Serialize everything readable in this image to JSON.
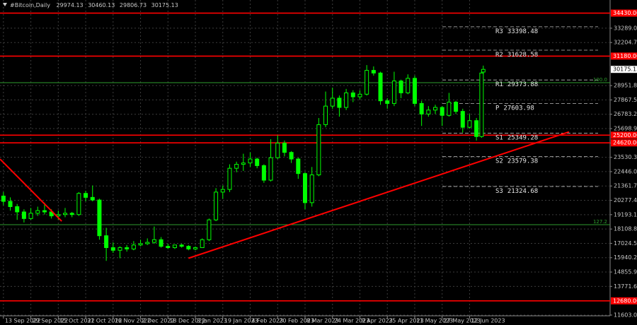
{
  "chart_data": {
    "type": "candlestick",
    "title": "#Bitcoin,Daily",
    "color": "#00ff00",
    "grid": true,
    "x": [
      0,
      4,
      8,
      12,
      16,
      20,
      24,
      28,
      32,
      36,
      40,
      44,
      48,
      52,
      56,
      60,
      64,
      68,
      72,
      76,
      80,
      84,
      88,
      92,
      96,
      100,
      104,
      108,
      112,
      116,
      120,
      124,
      128,
      132,
      136,
      140,
      144,
      148,
      152,
      156,
      160,
      164,
      168,
      172,
      176,
      180,
      184,
      188,
      192,
      196,
      200,
      204,
      208,
      212,
      216,
      220,
      224,
      228,
      232,
      236,
      240,
      244,
      248,
      252,
      256,
      260,
      264,
      268,
      272,
      276,
      279,
      280
    ],
    "open": [
      20600,
      20200,
      19800,
      19400,
      18900,
      19300,
      19500,
      19400,
      19100,
      19200,
      19300,
      19200,
      20800,
      20500,
      20300,
      17600,
      16700,
      16500,
      16700,
      16600,
      16900,
      17000,
      17100,
      17300,
      16800,
      16700,
      16900,
      16800,
      16600,
      16700,
      17300,
      18800,
      20900,
      21100,
      22700,
      23000,
      23100,
      23400,
      22900,
      21800,
      23500,
      24600,
      23900,
      23400,
      22300,
      20100,
      22200,
      26000,
      27400,
      28000,
      27300,
      28400,
      28100,
      28300,
      30100,
      29900,
      27800,
      27600,
      29300,
      28400,
      29500,
      27600,
      26800,
      27100,
      27300,
      26700,
      27700,
      27000,
      25800,
      26300,
      25100,
      29974.13
    ],
    "high": [
      20900,
      20500,
      20000,
      19600,
      19700,
      19800,
      20100,
      19600,
      19500,
      19700,
      19400,
      20900,
      21000,
      21400,
      20400,
      18200,
      17100,
      16800,
      16900,
      17200,
      17300,
      17400,
      18300,
      17500,
      17000,
      16900,
      17000,
      16900,
      16800,
      17400,
      18900,
      21200,
      21400,
      23000,
      23200,
      23800,
      23900,
      23500,
      23000,
      24900,
      25200,
      24800,
      24000,
      23500,
      22400,
      22800,
      26500,
      28500,
      28800,
      28200,
      28700,
      28600,
      28600,
      30500,
      30400,
      30000,
      28000,
      30000,
      29400,
      29800,
      29700,
      27800,
      27400,
      27500,
      27400,
      28400,
      27800,
      27200,
      26800,
      26500,
      30100,
      30460.13
    ],
    "low": [
      19900,
      19500,
      18800,
      18600,
      18800,
      19100,
      19200,
      18900,
      18800,
      19000,
      19000,
      19100,
      20200,
      20200,
      17300,
      15700,
      16300,
      15900,
      16400,
      16500,
      16800,
      16900,
      17000,
      16700,
      16600,
      16600,
      16700,
      16500,
      16500,
      16700,
      17200,
      18700,
      20400,
      20900,
      22400,
      22500,
      22800,
      22700,
      21600,
      21700,
      23400,
      23600,
      23100,
      21900,
      19600,
      19800,
      22100,
      25800,
      27200,
      26600,
      27100,
      27700,
      27900,
      28200,
      29700,
      27500,
      27200,
      27400,
      28000,
      28300,
      27400,
      25900,
      26600,
      26800,
      25900,
      26600,
      26800,
      25400,
      25700,
      24800,
      25000,
      29806.73
    ],
    "close": [
      20200,
      19800,
      19400,
      18900,
      19300,
      19500,
      19400,
      19100,
      19200,
      19300,
      19200,
      20800,
      20500,
      20300,
      17600,
      16700,
      16500,
      16700,
      16600,
      16900,
      17000,
      17100,
      17300,
      16800,
      16700,
      16900,
      16800,
      16600,
      16700,
      17300,
      18800,
      20900,
      21100,
      22700,
      23000,
      23100,
      23400,
      22900,
      21800,
      23500,
      24600,
      23900,
      23400,
      22300,
      20100,
      22200,
      26000,
      27400,
      28000,
      27300,
      28400,
      28100,
      28300,
      30100,
      29900,
      27800,
      27600,
      29300,
      28400,
      29500,
      27600,
      26800,
      27100,
      27300,
      26700,
      27700,
      27000,
      25800,
      26300,
      25100,
      29900,
      30175.13
    ],
    "xlim": [
      -2,
      354
    ],
    "ylim": [
      11120,
      35420
    ],
    "xticks": [
      {
        "value": 0,
        "label": "13 Sep 2022"
      },
      {
        "value": 16,
        "label": "29 Sep 2022"
      },
      {
        "value": 32,
        "label": "15 Oct 2022"
      },
      {
        "value": 48,
        "label": "31 Oct 2022"
      },
      {
        "value": 64,
        "label": "16 Nov 2022"
      },
      {
        "value": 80,
        "label": "2 Dec 2022"
      },
      {
        "value": 96,
        "label": "18 Dec 2022"
      },
      {
        "value": 112,
        "label": "3 Jan 2023"
      },
      {
        "value": 128,
        "label": "19 Jan 2023"
      },
      {
        "value": 144,
        "label": "4 Feb 2023"
      },
      {
        "value": 160,
        "label": "20 Feb 2023"
      },
      {
        "value": 176,
        "label": "8 Mar 2023"
      },
      {
        "value": 192,
        "label": "24 Mar 2023"
      },
      {
        "value": 208,
        "label": "9 Apr 2023"
      },
      {
        "value": 224,
        "label": "25 Apr 2023"
      },
      {
        "value": 240,
        "label": "11 May 2023"
      },
      {
        "value": 256,
        "label": "27 May 2023"
      },
      {
        "value": 272,
        "label": "12 Jun 2023"
      }
    ],
    "yticks": [
      {
        "value": 11603,
        "label": "11603.00"
      },
      {
        "value": 13771.6,
        "label": "13771.60"
      },
      {
        "value": 14855.9,
        "label": "14855.90"
      },
      {
        "value": 15940.2,
        "label": "15940.20"
      },
      {
        "value": 17024.5,
        "label": "17024.50"
      },
      {
        "value": 18108.8,
        "label": "18108.80"
      },
      {
        "value": 19193.1,
        "label": "19193.10"
      },
      {
        "value": 20277.4,
        "label": "20277.40"
      },
      {
        "value": 21361.7,
        "label": "21361.70"
      },
      {
        "value": 22446,
        "label": "22446.00"
      },
      {
        "value": 23530.3,
        "label": "23530.30"
      },
      {
        "value": 24614.6,
        "label": "24614.60"
      },
      {
        "value": 25698.9,
        "label": "25698.90"
      },
      {
        "value": 26783.2,
        "label": "26783.20"
      },
      {
        "value": 27867.5,
        "label": "27867.50"
      },
      {
        "value": 28951.8,
        "label": "28951.80"
      },
      {
        "value": 32204.7,
        "label": "32204.70"
      },
      {
        "value": 33289,
        "label": "33289.00"
      }
    ],
    "levels": [
      {
        "value": 34430,
        "label": "34430.00"
      },
      {
        "value": 31180,
        "label": "31180.00"
      },
      {
        "value": 25200,
        "label": "25200.00"
      },
      {
        "value": 24620,
        "label": "24620.00"
      },
      {
        "value": 12680,
        "label": "12680.00"
      }
    ],
    "level_color": "#ff0000",
    "pivots": [
      {
        "name": "R3",
        "value": 33398.48
      },
      {
        "name": "R2",
        "value": 31628.58
      },
      {
        "name": "R1",
        "value": 29373.88
      },
      {
        "name": "P",
        "value": 27603.98
      },
      {
        "name": "S1",
        "value": 25349.28
      },
      {
        "name": "S2",
        "value": 23579.38
      },
      {
        "name": "S3",
        "value": 21324.68
      }
    ],
    "fib_levels": [
      {
        "label": "100.0",
        "value": 29170
      },
      {
        "label": "127.2",
        "value": 18440
      }
    ],
    "trend_lines": [
      {
        "x": [
          108,
          330
        ],
        "y": [
          15900,
          25450
        ]
      },
      {
        "x": [
          -2,
          34
        ],
        "y": [
          23400,
          18700
        ]
      }
    ]
  }
}
